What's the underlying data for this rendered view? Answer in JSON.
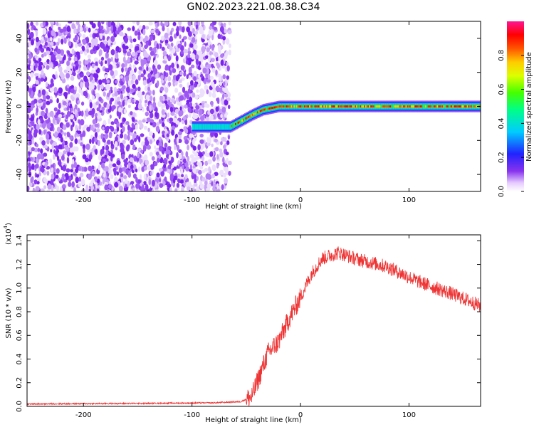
{
  "title": "GN02.2023.221.08.38.C34",
  "chart_data": [
    {
      "type": "heatmap",
      "name": "spectrogram",
      "xlabel": "Height of straight line (km)",
      "ylabel": "Frequency (Hz)",
      "xlim": [
        -252,
        166
      ],
      "ylim": [
        -50,
        50
      ],
      "xticks": [
        -200,
        -100,
        0,
        100
      ],
      "yticks": [
        -40,
        -20,
        0,
        20,
        40
      ],
      "noise_region_x": [
        -252,
        -65
      ],
      "track": {
        "description_points": [
          [
            -100,
            -12
          ],
          [
            -75,
            -12
          ],
          [
            -65,
            -12
          ],
          [
            -45,
            -5
          ],
          [
            -35,
            -2
          ],
          [
            -20,
            0
          ],
          [
            166,
            0
          ]
        ]
      },
      "colorbar": {
        "label": "Normalized spectral amplitude",
        "range": [
          0.0,
          1.0
        ],
        "ticks": [
          "0.0",
          "0.2",
          "0.4",
          "0.6",
          "0.8"
        ],
        "tick_values": [
          0.0,
          0.2,
          0.4,
          0.6,
          0.8
        ]
      }
    },
    {
      "type": "line",
      "name": "snr",
      "xlabel": "Height of straight line (km)",
      "ylabel": "SNR (10 * v/v)",
      "yscale_label_base": "(x10",
      "yscale_label_exp": "4",
      "yscale_label_close": ")",
      "xlim": [
        -252,
        166
      ],
      "ylim": [
        0.0,
        1.45
      ],
      "xticks": [
        -200,
        -100,
        0,
        100
      ],
      "yticks": [
        "0.0",
        "0.2",
        "0.4",
        "0.6",
        "0.8",
        "1.0",
        "1.2",
        "1.4"
      ],
      "ytick_values": [
        0.0,
        0.2,
        0.4,
        0.6,
        0.8,
        1.0,
        1.2,
        1.4
      ],
      "color": "#ee3333",
      "envelope": [
        [
          -252,
          0.02
        ],
        [
          -150,
          0.025
        ],
        [
          -80,
          0.03
        ],
        [
          -55,
          0.04
        ],
        [
          -45,
          0.08
        ],
        [
          -38,
          0.25
        ],
        [
          -30,
          0.45
        ],
        [
          -20,
          0.55
        ],
        [
          -10,
          0.75
        ],
        [
          0,
          0.92
        ],
        [
          10,
          1.12
        ],
        [
          20,
          1.25
        ],
        [
          35,
          1.3
        ],
        [
          50,
          1.25
        ],
        [
          80,
          1.18
        ],
        [
          110,
          1.05
        ],
        [
          140,
          0.95
        ],
        [
          166,
          0.85
        ]
      ]
    }
  ]
}
